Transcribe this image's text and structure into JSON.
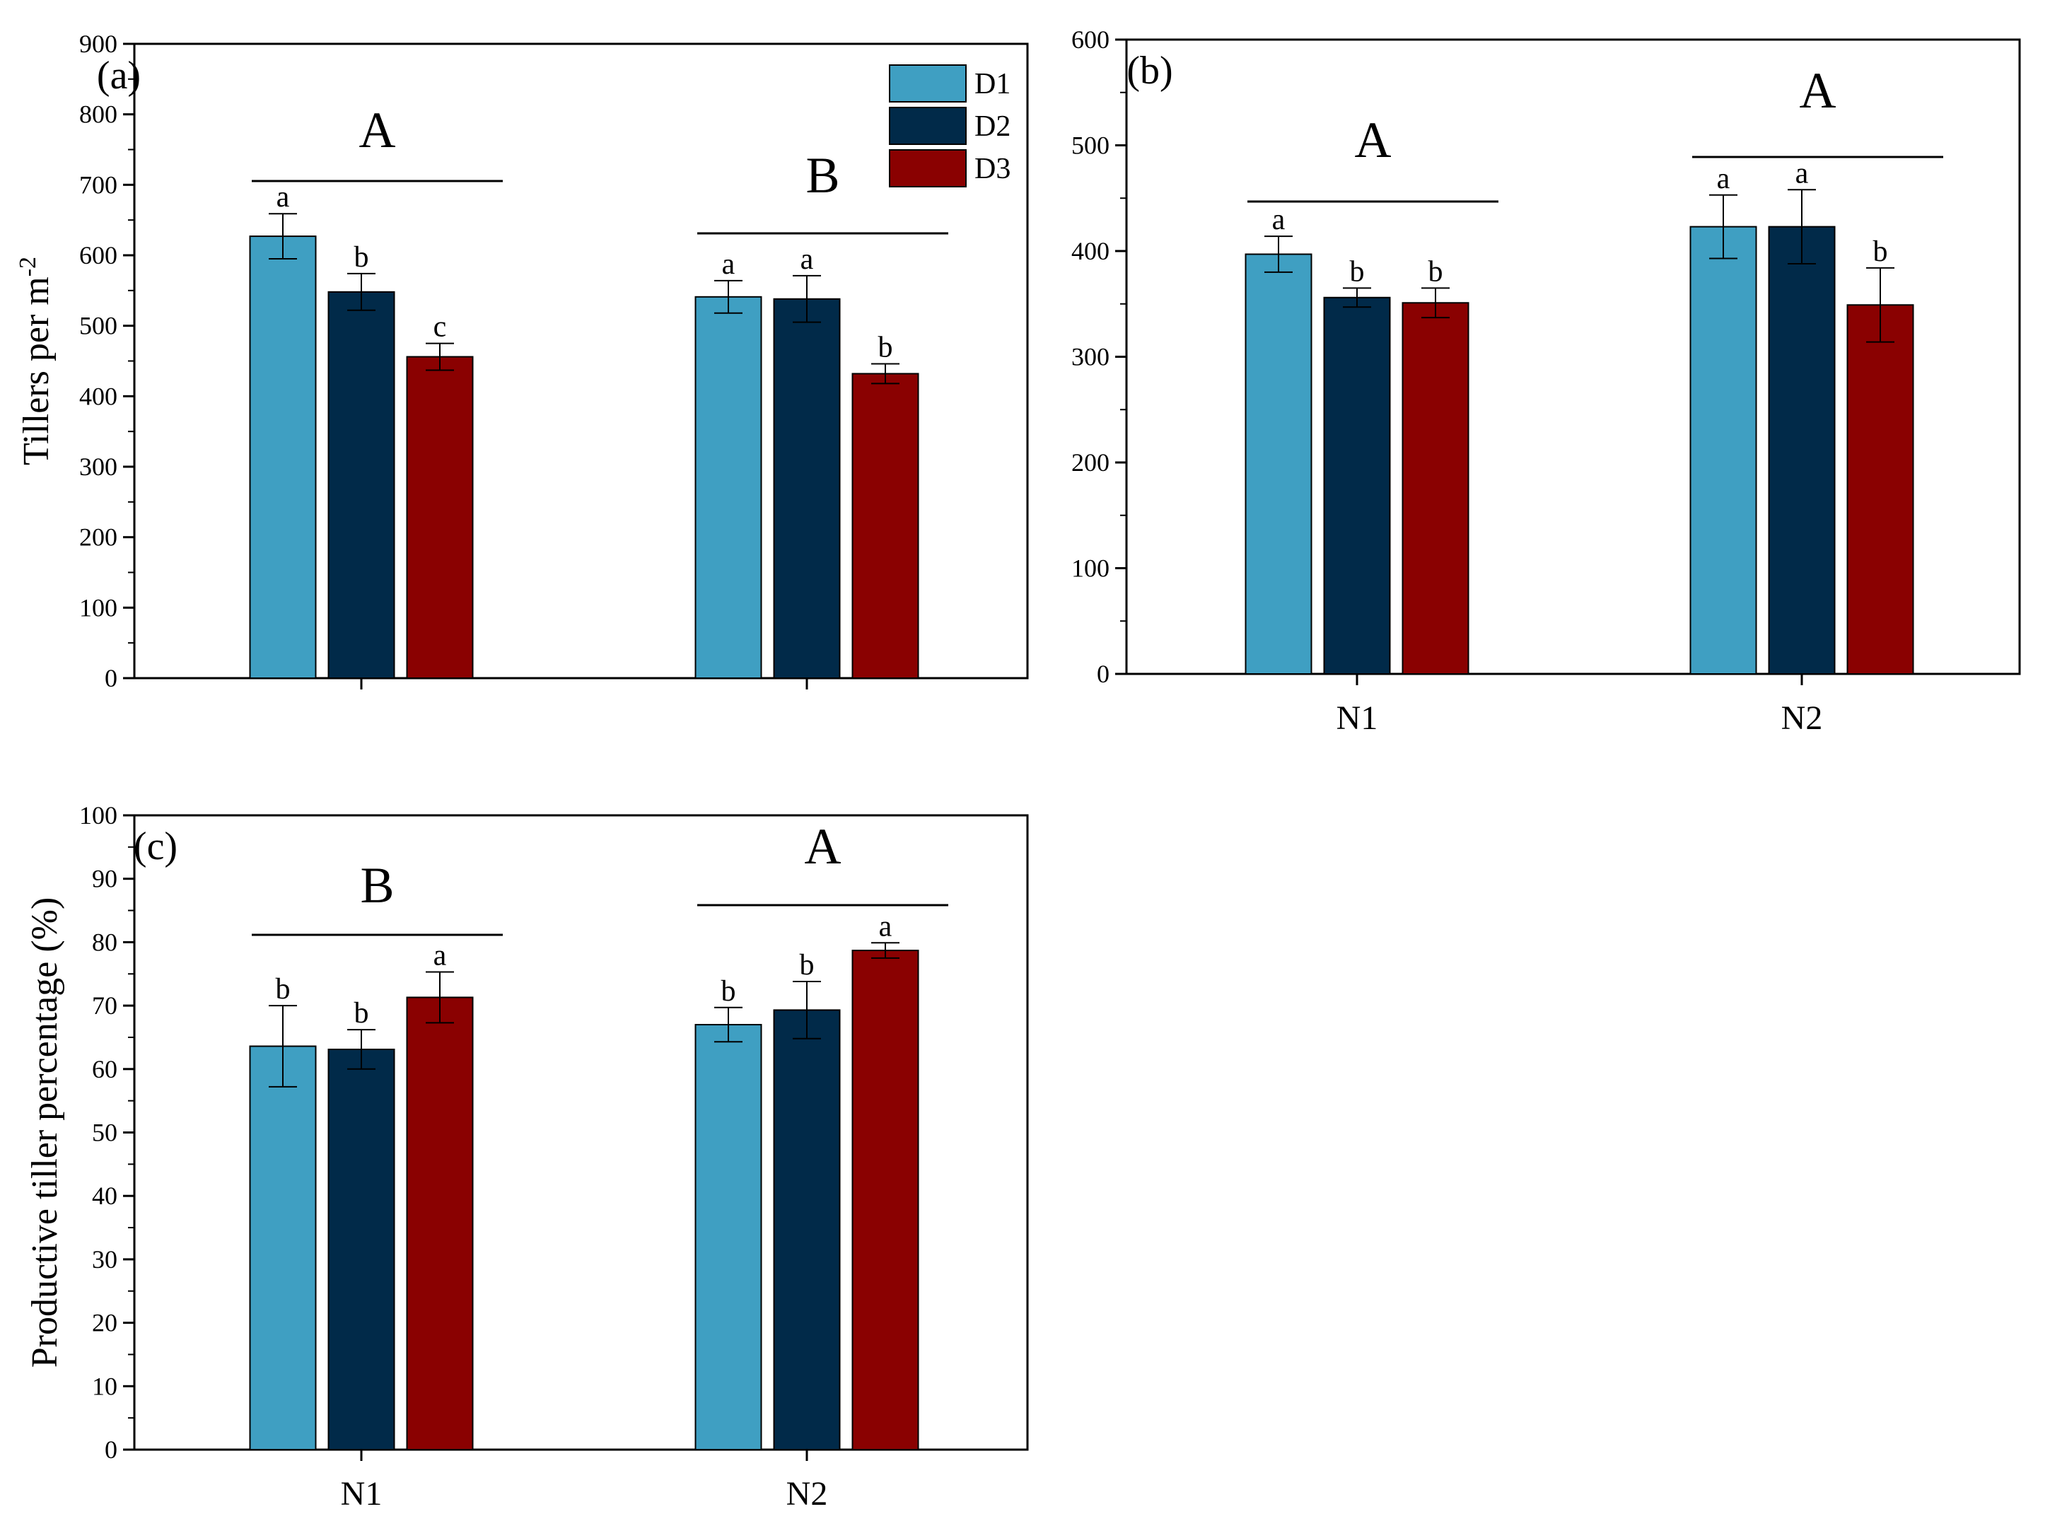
{
  "colors": {
    "D1": "#3f9fc2",
    "D2": "#012a49",
    "D3": "#8a0101"
  },
  "legend": [
    {
      "name": "D1",
      "color": "#3f9fc2"
    },
    {
      "name": "D2",
      "color": "#012a49"
    },
    {
      "name": "D3",
      "color": "#8a0101"
    }
  ],
  "chart_data": [
    {
      "panel": "(a)",
      "type": "bar",
      "ylabel_main": "Tillers per m",
      "ylabel_sup": "-2",
      "ylim": [
        0,
        900
      ],
      "yticks": [
        0,
        100,
        200,
        300,
        400,
        500,
        600,
        700,
        800,
        900
      ],
      "categories": [
        "",
        ""
      ],
      "series": [
        {
          "name": "D1",
          "values": [
            627,
            541
          ],
          "errors": [
            32,
            23
          ],
          "letters": [
            "a",
            "a"
          ]
        },
        {
          "name": "D2",
          "values": [
            548,
            538
          ],
          "errors": [
            26,
            33
          ],
          "letters": [
            "b",
            "a"
          ]
        },
        {
          "name": "D3",
          "values": [
            456,
            432
          ],
          "errors": [
            19,
            14
          ],
          "letters": [
            "c",
            "b"
          ]
        }
      ],
      "group_letters": [
        "A",
        "B"
      ],
      "legend": "top-right"
    },
    {
      "panel": "(b)",
      "type": "bar",
      "ylabel_main": "",
      "ylabel_sup": "",
      "ylim": [
        0,
        600
      ],
      "yticks": [
        0,
        100,
        200,
        300,
        400,
        500,
        600
      ],
      "categories": [
        "N1",
        "N2"
      ],
      "series": [
        {
          "name": "D1",
          "values": [
            397,
            423
          ],
          "errors": [
            17,
            30
          ],
          "letters": [
            "a",
            "a"
          ]
        },
        {
          "name": "D2",
          "values": [
            356,
            423
          ],
          "errors": [
            9,
            35
          ],
          "letters": [
            "b",
            "a"
          ]
        },
        {
          "name": "D3",
          "values": [
            351,
            349
          ],
          "errors": [
            14,
            35
          ],
          "letters": [
            "b",
            "b"
          ]
        }
      ],
      "group_letters": [
        "A",
        "A"
      ]
    },
    {
      "panel": "(c)",
      "type": "bar",
      "ylabel_main": "Productive tiller percentage (%)",
      "ylabel_sup": "",
      "ylim": [
        0,
        100
      ],
      "yticks": [
        0,
        10,
        20,
        30,
        40,
        50,
        60,
        70,
        80,
        90,
        100
      ],
      "categories": [
        "N1",
        "N2"
      ],
      "series": [
        {
          "name": "D1",
          "values": [
            63.6,
            67.0
          ],
          "errors": [
            6.4,
            2.7
          ],
          "letters": [
            "b",
            "b"
          ]
        },
        {
          "name": "D2",
          "values": [
            63.1,
            69.3
          ],
          "errors": [
            3.1,
            4.5
          ],
          "letters": [
            "b",
            "b"
          ]
        },
        {
          "name": "D3",
          "values": [
            71.3,
            78.7
          ],
          "errors": [
            4.0,
            1.2
          ],
          "letters": [
            "a",
            "a"
          ]
        }
      ],
      "group_letters": [
        "B",
        "A"
      ]
    }
  ]
}
